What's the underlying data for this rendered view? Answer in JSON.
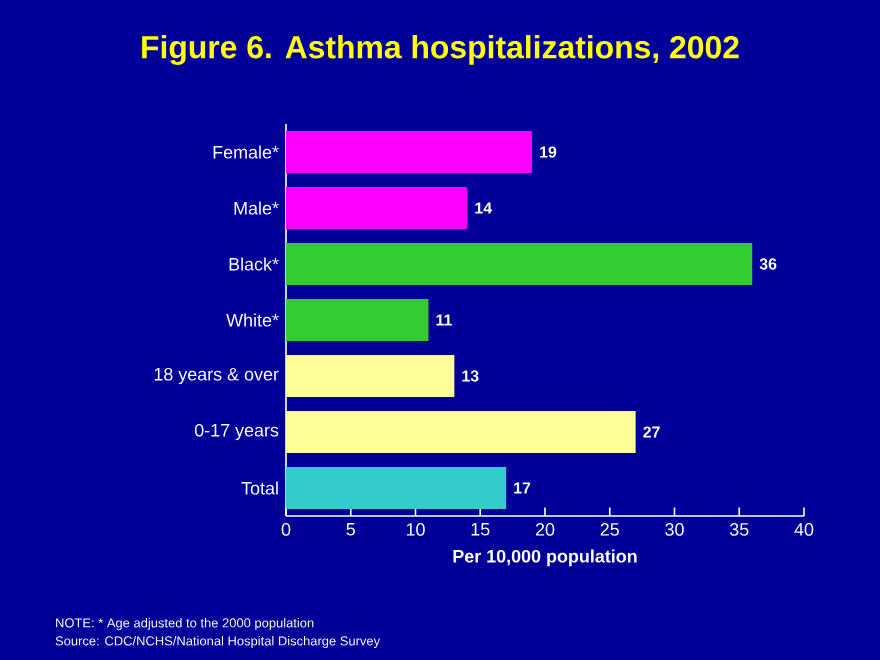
{
  "chart_data": {
    "type": "bar",
    "orientation": "horizontal",
    "title": "Figure 6. Asthma hospitalizations, 2002",
    "categories": [
      "Female*",
      "Male*",
      "Black*",
      "White*",
      "18 years & over",
      "0-17 years",
      "Total"
    ],
    "values": [
      19,
      14,
      36,
      11,
      13,
      27,
      17
    ],
    "colors": [
      "#ff00ff",
      "#ff00ff",
      "#33cc33",
      "#33cc33",
      "#ffff99",
      "#ffff99",
      "#33cccc"
    ],
    "xlim": [
      0,
      40
    ],
    "xticks": [
      0,
      5,
      10,
      15,
      20,
      25,
      30,
      35,
      40
    ],
    "xlabel": "Per 10,000 population",
    "data_labels": true,
    "annotations": [
      "NOTE: * Age adjusted to the 2000 population",
      "Source: CDC/NCHS/National Hospital Discharge Survey"
    ]
  }
}
